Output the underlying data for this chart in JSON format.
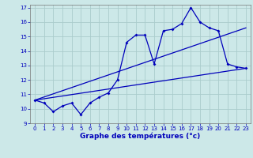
{
  "xlabel": "Graphe des températures (°c)",
  "xlim": [
    -0.5,
    23.5
  ],
  "ylim": [
    9,
    17.2
  ],
  "yticks": [
    9,
    10,
    11,
    12,
    13,
    14,
    15,
    16,
    17
  ],
  "xticks": [
    0,
    1,
    2,
    3,
    4,
    5,
    6,
    7,
    8,
    9,
    10,
    11,
    12,
    13,
    14,
    15,
    16,
    17,
    18,
    19,
    20,
    21,
    22,
    23
  ],
  "bg_color": "#cce8e8",
  "grid_color": "#aacccc",
  "line_color": "#0000bb",
  "line1_x": [
    0,
    1,
    2,
    3,
    4,
    5,
    6,
    7,
    8,
    9,
    10,
    11,
    12,
    13,
    14,
    15,
    16,
    17,
    18,
    19,
    20,
    21,
    22,
    23
  ],
  "line1_y": [
    10.6,
    10.4,
    9.8,
    10.2,
    10.4,
    9.6,
    10.4,
    10.8,
    11.1,
    12.0,
    14.6,
    15.1,
    15.1,
    13.1,
    15.4,
    15.5,
    15.9,
    17.0,
    16.0,
    15.6,
    15.4,
    13.1,
    12.9,
    12.8
  ],
  "line2_x": [
    0,
    23
  ],
  "line2_y": [
    10.6,
    12.8
  ],
  "line3_x": [
    0,
    23
  ],
  "line3_y": [
    10.6,
    15.6
  ]
}
